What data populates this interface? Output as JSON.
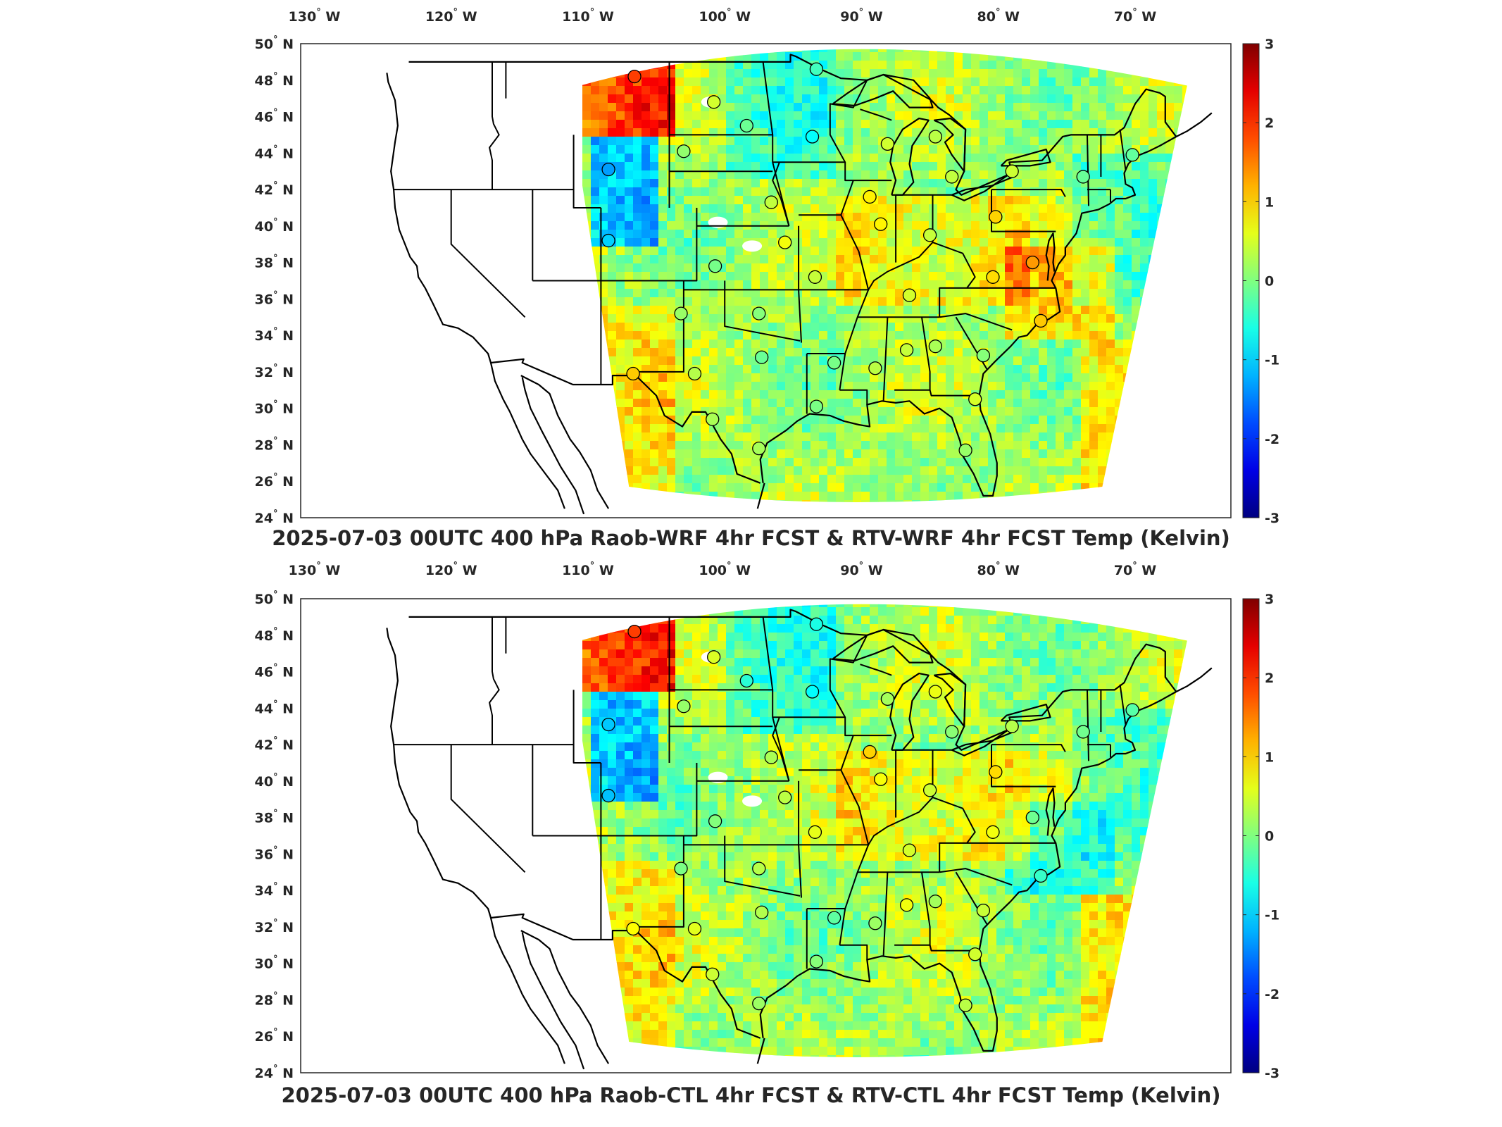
{
  "figure": {
    "panels": [
      {
        "title": "2025-07-03 00UTC 400 hPa Raob-WRF 4hr FCST & RTV-WRF 4hr FCST Temp (Kelvin)",
        "variant": "wrf"
      },
      {
        "title": "2025-07-03 00UTC 400 hPa Raob-CTL 4hr FCST & RTV-CTL 4hr FCST Temp (Kelvin)",
        "variant": "ctl"
      }
    ]
  },
  "map_axes": {
    "lon_ticks": [
      {
        "value": -130,
        "label": "130",
        "hemi": "W"
      },
      {
        "value": -120,
        "label": "120",
        "hemi": "W"
      },
      {
        "value": -110,
        "label": "110",
        "hemi": "W"
      },
      {
        "value": -100,
        "label": "100",
        "hemi": "W"
      },
      {
        "value": -90,
        "label": "90",
        "hemi": "W"
      },
      {
        "value": -80,
        "label": "80",
        "hemi": "W"
      },
      {
        "value": -70,
        "label": "70",
        "hemi": "W"
      }
    ],
    "lat_ticks": [
      {
        "value": 50,
        "label": "50",
        "hemi": "N"
      },
      {
        "value": 48,
        "label": "48",
        "hemi": "N"
      },
      {
        "value": 46,
        "label": "46",
        "hemi": "N"
      },
      {
        "value": 44,
        "label": "44",
        "hemi": "N"
      },
      {
        "value": 42,
        "label": "42",
        "hemi": "N"
      },
      {
        "value": 40,
        "label": "40",
        "hemi": "N"
      },
      {
        "value": 38,
        "label": "38",
        "hemi": "N"
      },
      {
        "value": 36,
        "label": "36",
        "hemi": "N"
      },
      {
        "value": 34,
        "label": "34",
        "hemi": "N"
      },
      {
        "value": 32,
        "label": "32",
        "hemi": "N"
      },
      {
        "value": 30,
        "label": "30",
        "hemi": "N"
      },
      {
        "value": 28,
        "label": "28",
        "hemi": "N"
      },
      {
        "value": 26,
        "label": "26",
        "hemi": "N"
      },
      {
        "value": 24,
        "label": "24",
        "hemi": "N"
      }
    ],
    "lon_range": [
      -131,
      -63
    ],
    "lat_range": [
      24,
      50
    ]
  },
  "colorbar": {
    "colormap": "jet",
    "range": [
      -3,
      3
    ],
    "ticks": [
      "3",
      "2",
      "1",
      "0",
      "-1",
      "-2",
      "-3"
    ],
    "unit": "Kelvin"
  },
  "stations": [
    {
      "lon": -106.6,
      "lat": 48.2
    },
    {
      "lon": -93.3,
      "lat": 48.6
    },
    {
      "lon": -100.8,
      "lat": 46.8
    },
    {
      "lon": -98.4,
      "lat": 45.5
    },
    {
      "lon": -93.6,
      "lat": 44.9
    },
    {
      "lon": -88.1,
      "lat": 44.5
    },
    {
      "lon": -84.6,
      "lat": 44.9
    },
    {
      "lon": -108.5,
      "lat": 43.1
    },
    {
      "lon": -103.0,
      "lat": 44.1
    },
    {
      "lon": -83.4,
      "lat": 42.7
    },
    {
      "lon": -79.0,
      "lat": 43.0
    },
    {
      "lon": -73.8,
      "lat": 42.7
    },
    {
      "lon": -70.2,
      "lat": 43.9
    },
    {
      "lon": -96.6,
      "lat": 41.3
    },
    {
      "lon": -89.4,
      "lat": 41.6
    },
    {
      "lon": -88.6,
      "lat": 40.1
    },
    {
      "lon": -80.2,
      "lat": 40.5
    },
    {
      "lon": -85.0,
      "lat": 39.5
    },
    {
      "lon": -108.5,
      "lat": 39.2
    },
    {
      "lon": -95.6,
      "lat": 39.1
    },
    {
      "lon": -100.7,
      "lat": 37.8
    },
    {
      "lon": -93.4,
      "lat": 37.2
    },
    {
      "lon": -86.5,
      "lat": 36.2
    },
    {
      "lon": -80.4,
      "lat": 37.2
    },
    {
      "lon": -77.5,
      "lat": 38.0
    },
    {
      "lon": -103.2,
      "lat": 35.2
    },
    {
      "lon": -97.5,
      "lat": 35.2
    },
    {
      "lon": -76.9,
      "lat": 34.8
    },
    {
      "lon": -97.3,
      "lat": 32.8
    },
    {
      "lon": -92.0,
      "lat": 32.5
    },
    {
      "lon": -86.7,
      "lat": 33.2
    },
    {
      "lon": -84.6,
      "lat": 33.4
    },
    {
      "lon": -81.1,
      "lat": 32.9
    },
    {
      "lon": -89.0,
      "lat": 32.2
    },
    {
      "lon": -106.7,
      "lat": 31.9
    },
    {
      "lon": -102.2,
      "lat": 31.9
    },
    {
      "lon": -93.3,
      "lat": 30.1
    },
    {
      "lon": -81.7,
      "lat": 30.5
    },
    {
      "lon": -100.9,
      "lat": 29.4
    },
    {
      "lon": -97.5,
      "lat": 27.8
    },
    {
      "lon": -82.4,
      "lat": 27.7
    }
  ]
}
